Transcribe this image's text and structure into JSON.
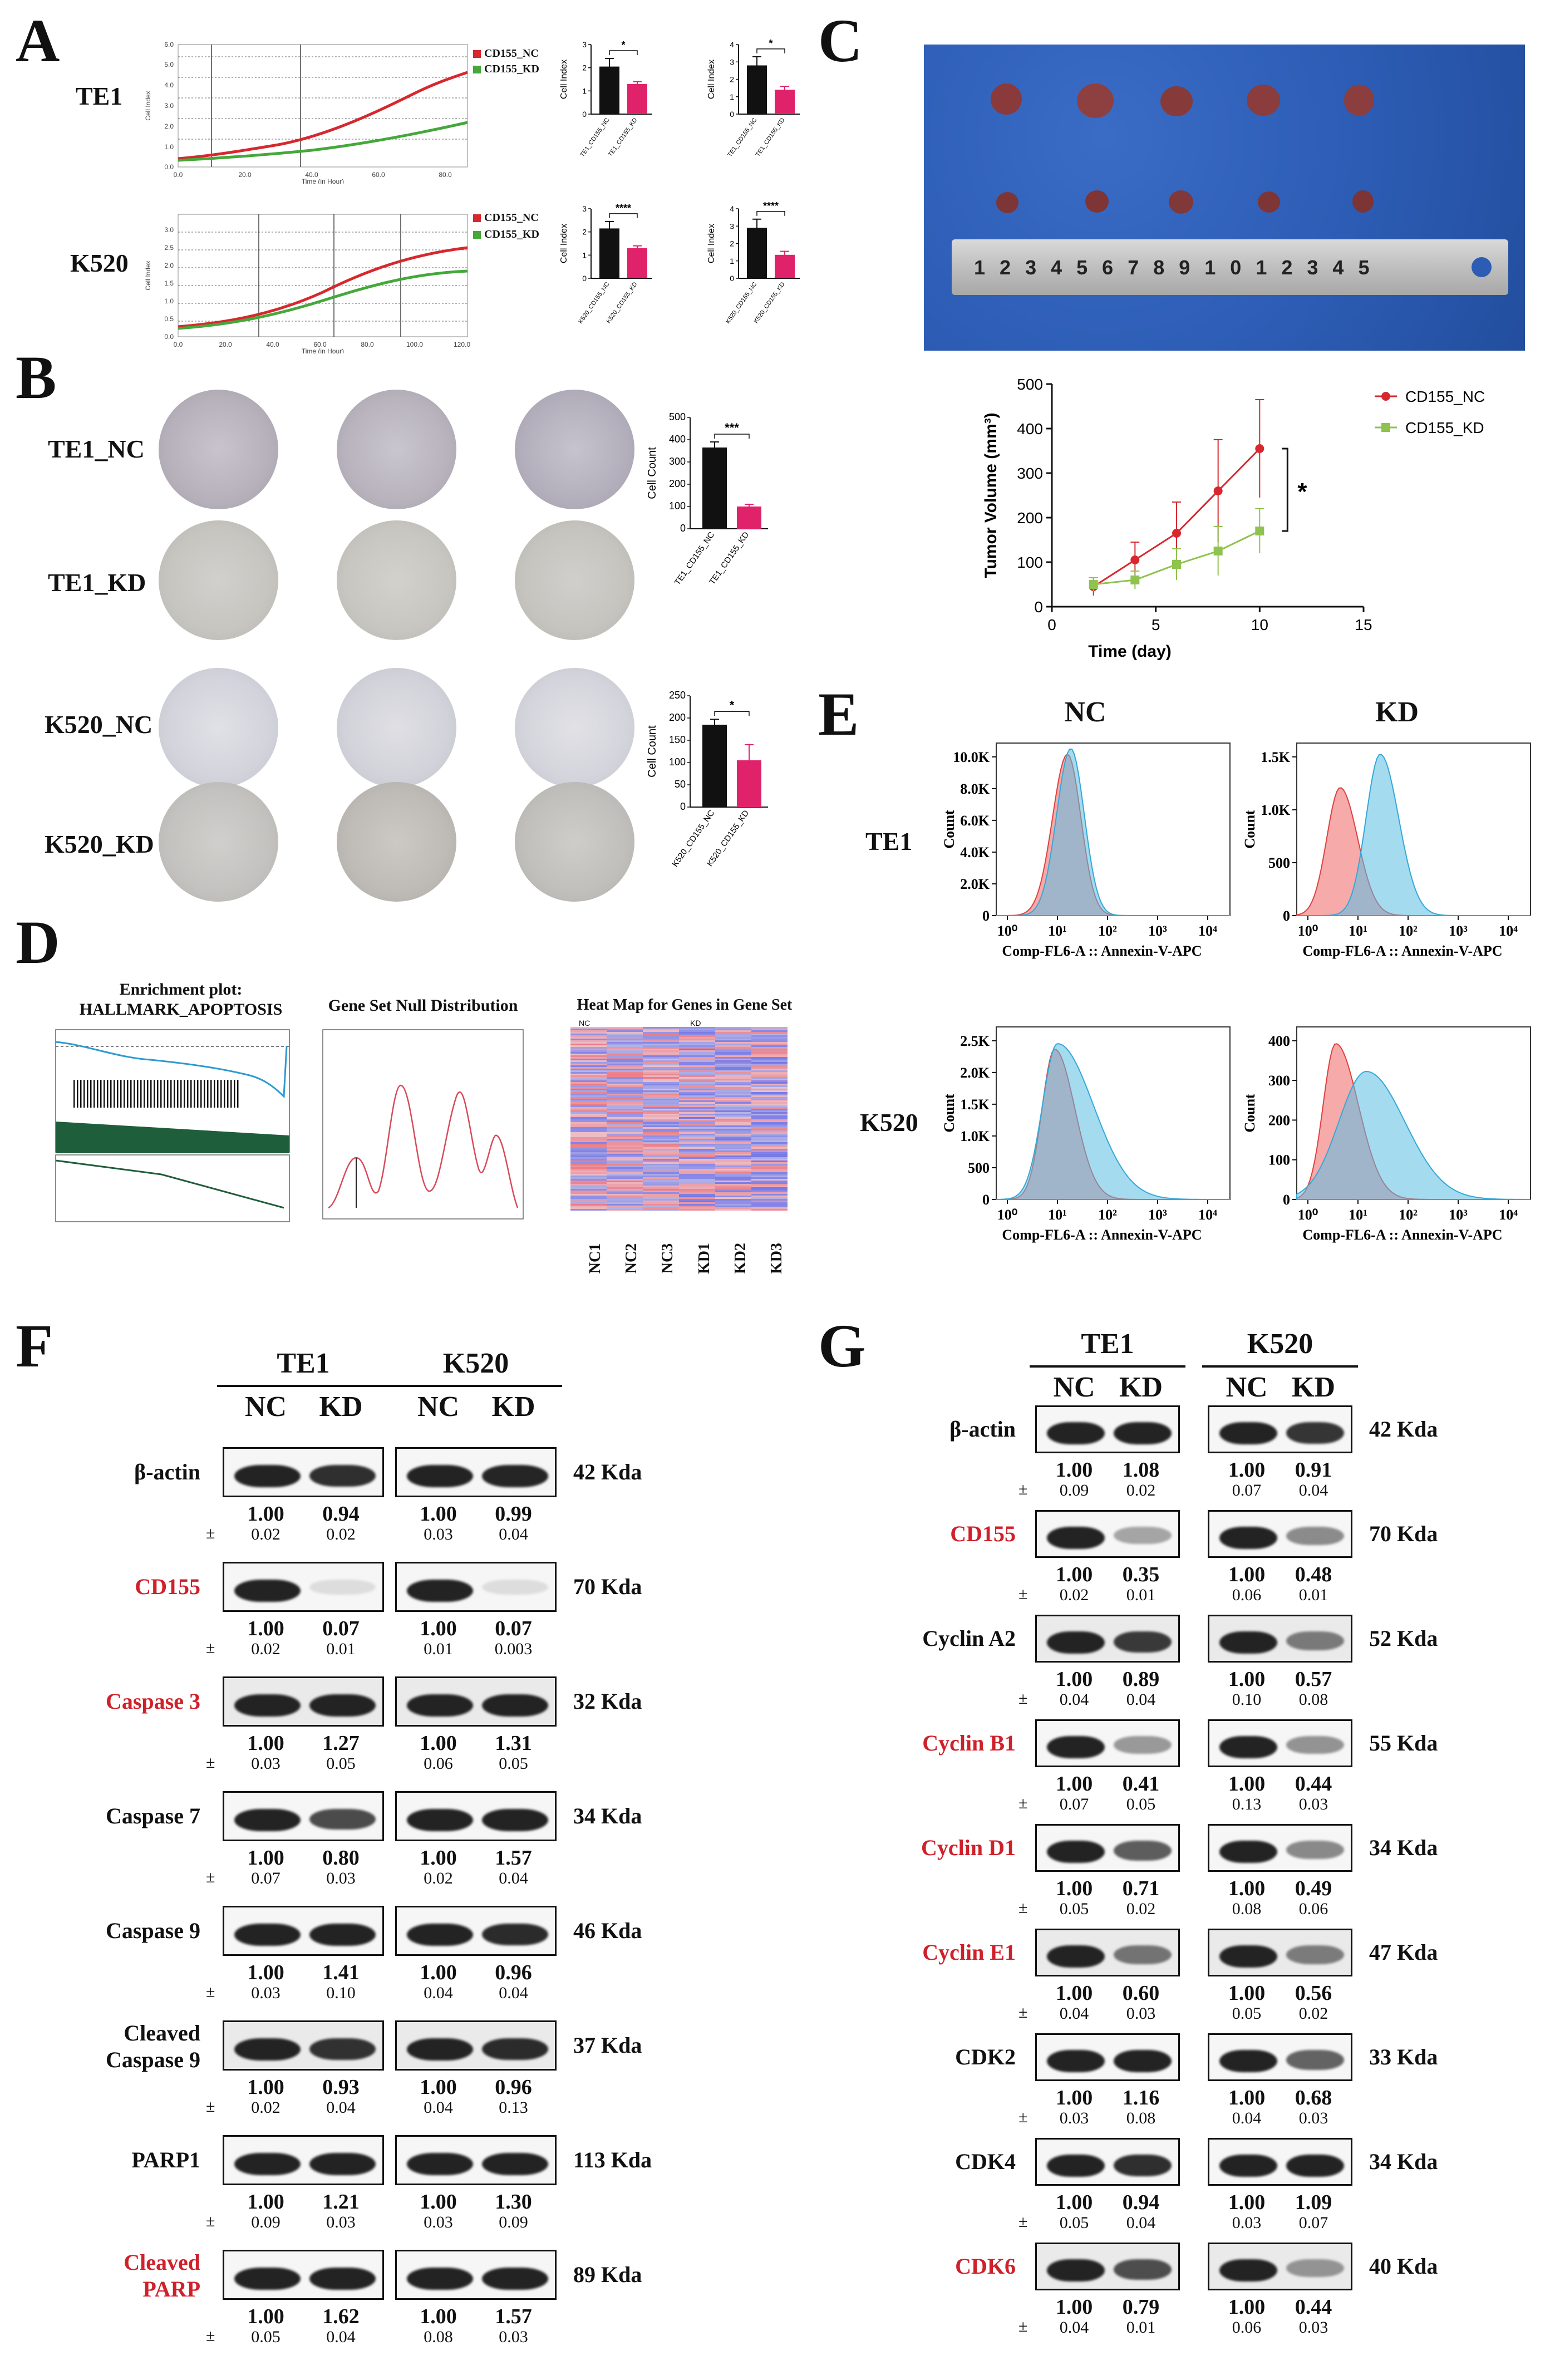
{
  "panels": {
    "A": {
      "letter": "A",
      "rows": [
        {
          "label": "TE1",
          "legend": [
            "CD155_NC",
            "CD155_KD"
          ],
          "xlabel": "Time (in Hour)",
          "ylabel": "Cell Index",
          "xticks": [
            "0.0",
            "20.0",
            "40.0",
            "60.0",
            "80.0"
          ],
          "yticks": [
            "0.0",
            "1.0",
            "2.0",
            "3.0",
            "4.0",
            "5.0",
            "6.0"
          ],
          "bars1": {
            "sig": "*",
            "ylabel": "Cell Index",
            "yticks": [
              "0",
              "1",
              "2",
              "3"
            ],
            "cats": [
              "TE1_CD155_NC",
              "TE1_CD155_KD"
            ],
            "values": [
              2.05,
              1.3
            ],
            "errors": [
              0.35,
              0.1
            ]
          },
          "bars2": {
            "sig": "*",
            "ylabel": "Cell Index",
            "yticks": [
              "0",
              "1",
              "2",
              "3",
              "4"
            ],
            "cats": [
              "TE1_CD155_NC",
              "TE1_CD155_KD"
            ],
            "values": [
              2.8,
              1.4
            ],
            "errors": [
              0.5,
              0.2
            ]
          }
        },
        {
          "label": "K520",
          "legend": [
            "CD155_NC",
            "CD155_KD"
          ],
          "xlabel": "Time (in Hour)",
          "ylabel": "Cell Index",
          "xticks": [
            "0.0",
            "20.0",
            "40.0",
            "60.0",
            "80.0",
            "100.0",
            "120.0"
          ],
          "yticks": [
            "0.0",
            "0.5",
            "1.0",
            "1.5",
            "2.0",
            "2.5",
            "3.0"
          ],
          "bars1": {
            "sig": "****",
            "ylabel": "Cell Index",
            "yticks": [
              "0",
              "1",
              "2",
              "3"
            ],
            "cats": [
              "K520_CD155_NC",
              "K520_CD155_KD"
            ],
            "values": [
              2.15,
              1.3
            ],
            "errors": [
              0.3,
              0.1
            ]
          },
          "bars2": {
            "sig": "****",
            "ylabel": "Cell Index",
            "yticks": [
              "0",
              "1",
              "2",
              "3",
              "4"
            ],
            "cats": [
              "K520_CD155_NC",
              "K520_CD155_KD"
            ],
            "values": [
              2.9,
              1.35
            ],
            "errors": [
              0.5,
              0.2
            ]
          }
        }
      ]
    },
    "B": {
      "letter": "B",
      "rows": [
        "TE1_NC",
        "TE1_KD",
        "K520_NC",
        "K520_KD"
      ],
      "chart1": {
        "sig": "***",
        "ylabel": "Cell Count",
        "yticks": [
          "0",
          "100",
          "200",
          "300",
          "400",
          "500"
        ],
        "cats": [
          "TE1_CD155_NC",
          "TE1_CD155_KD"
        ],
        "values": [
          365,
          100
        ],
        "errors": [
          25,
          10
        ]
      },
      "chart2": {
        "sig": "*",
        "ylabel": "Cell Count",
        "yticks": [
          "0",
          "50",
          "100",
          "150",
          "200",
          "250"
        ],
        "cats": [
          "K520_CD155_NC",
          "K520_CD155_KD"
        ],
        "values": [
          185,
          105
        ],
        "errors": [
          12,
          35
        ]
      }
    },
    "C": {
      "letter": "C",
      "ruler_numbers": [
        "1",
        "2",
        "3",
        "4",
        "5",
        "6",
        "7",
        "8",
        "9",
        "10",
        "1",
        "2",
        "3",
        "4",
        "5"
      ],
      "sig": "*"
    },
    "D": {
      "letter": "D",
      "enrich_title_1": "Enrichment plot:",
      "enrich_title_2": "HALLMARK_APOPTOSIS",
      "null_title": "Gene Set Null Distribution",
      "heat_title": "Heat Map for Genes in Gene Set",
      "heat_groups": [
        "NC",
        "KD"
      ],
      "heat_cols": [
        "NC1",
        "NC2",
        "NC3",
        "KD1",
        "KD2",
        "KD3"
      ]
    },
    "E": {
      "letter": "E",
      "col_headers": [
        "NC",
        "KD"
      ],
      "rows": [
        "TE1",
        "K520"
      ],
      "xlabel": "Comp-FL6-A :: Annexin-V-APC",
      "ylabel": "Count",
      "xticks": [
        "10⁰",
        "10¹",
        "10²",
        "10³",
        "10⁴"
      ],
      "te1_nc_yticks": [
        "0",
        "2.0K",
        "4.0K",
        "6.0K",
        "8.0K",
        "10.0K"
      ],
      "te1_kd_yticks": [
        "0",
        "500",
        "1.0K",
        "1.5K"
      ],
      "k520_nc_yticks": [
        "0",
        "500",
        "1.0K",
        "1.5K",
        "2.0K",
        "2.5K"
      ],
      "k520_kd_yticks": [
        "0",
        "100",
        "200",
        "300",
        "400"
      ]
    },
    "F": {
      "letter": "F",
      "lines": [
        "TE1",
        "K520"
      ],
      "conds": [
        "NC",
        "KD"
      ],
      "proteins": [
        {
          "name": "β-actin",
          "kda": "42 Kda",
          "red": false,
          "q": [
            "1.00",
            "0.94",
            "1.00",
            "0.99"
          ],
          "sd": [
            "0.02",
            "0.02",
            "0.03",
            "0.04"
          ]
        },
        {
          "name": "CD155",
          "kda": "70 Kda",
          "red": true,
          "q": [
            "1.00",
            "0.07",
            "1.00",
            "0.07"
          ],
          "sd": [
            "0.02",
            "0.01",
            "0.01",
            "0.003"
          ]
        },
        {
          "name": "Caspase 3",
          "kda": "32 Kda",
          "red": true,
          "q": [
            "1.00",
            "1.27",
            "1.00",
            "1.31"
          ],
          "sd": [
            "0.03",
            "0.05",
            "0.06",
            "0.05"
          ]
        },
        {
          "name": "Caspase 7",
          "kda": "34 Kda",
          "red": false,
          "q": [
            "1.00",
            "0.80",
            "1.00",
            "1.57"
          ],
          "sd": [
            "0.07",
            "0.03",
            "0.02",
            "0.04"
          ]
        },
        {
          "name": "Caspase 9",
          "kda": "46 Kda",
          "red": false,
          "q": [
            "1.00",
            "1.41",
            "1.00",
            "0.96"
          ],
          "sd": [
            "0.03",
            "0.10",
            "0.04",
            "0.04"
          ]
        },
        {
          "name": "Cleaved",
          "name2": "Caspase 9",
          "kda": "37 Kda",
          "red": false,
          "q": [
            "1.00",
            "0.93",
            "1.00",
            "0.96"
          ],
          "sd": [
            "0.02",
            "0.04",
            "0.04",
            "0.13"
          ]
        },
        {
          "name": "PARP1",
          "kda": "113 Kda",
          "red": false,
          "q": [
            "1.00",
            "1.21",
            "1.00",
            "1.30"
          ],
          "sd": [
            "0.09",
            "0.03",
            "0.03",
            "0.09"
          ]
        },
        {
          "name": "Cleaved",
          "name2": "PARP",
          "kda": "89 Kda",
          "red": true,
          "q": [
            "1.00",
            "1.62",
            "1.00",
            "1.57"
          ],
          "sd": [
            "0.05",
            "0.04",
            "0.08",
            "0.03"
          ]
        }
      ]
    },
    "G": {
      "letter": "G",
      "lines": [
        "TE1",
        "K520"
      ],
      "conds": [
        "NC",
        "KD"
      ],
      "proteins": [
        {
          "name": "β-actin",
          "kda": "42 Kda",
          "red": false,
          "q": [
            "1.00",
            "1.08",
            "1.00",
            "0.91"
          ],
          "sd": [
            "0.09",
            "0.02",
            "0.07",
            "0.04"
          ]
        },
        {
          "name": "CD155",
          "kda": "70 Kda",
          "red": true,
          "q": [
            "1.00",
            "0.35",
            "1.00",
            "0.48"
          ],
          "sd": [
            "0.02",
            "0.01",
            "0.06",
            "0.01"
          ]
        },
        {
          "name": "Cyclin A2",
          "kda": "52 Kda",
          "red": false,
          "q": [
            "1.00",
            "0.89",
            "1.00",
            "0.57"
          ],
          "sd": [
            "0.04",
            "0.04",
            "0.10",
            "0.08"
          ]
        },
        {
          "name": "Cyclin B1",
          "kda": "55 Kda",
          "red": true,
          "q": [
            "1.00",
            "0.41",
            "1.00",
            "0.44"
          ],
          "sd": [
            "0.07",
            "0.05",
            "0.13",
            "0.03"
          ]
        },
        {
          "name": "Cyclin D1",
          "kda": "34 Kda",
          "red": true,
          "q": [
            "1.00",
            "0.71",
            "1.00",
            "0.49"
          ],
          "sd": [
            "0.05",
            "0.02",
            "0.08",
            "0.06"
          ]
        },
        {
          "name": "Cyclin E1",
          "kda": "47 Kda",
          "red": true,
          "q": [
            "1.00",
            "0.60",
            "1.00",
            "0.56"
          ],
          "sd": [
            "0.04",
            "0.03",
            "0.05",
            "0.02"
          ]
        },
        {
          "name": "CDK2",
          "kda": "33 Kda",
          "red": false,
          "q": [
            "1.00",
            "1.16",
            "1.00",
            "0.68"
          ],
          "sd": [
            "0.03",
            "0.08",
            "0.04",
            "0.03"
          ]
        },
        {
          "name": "CDK4",
          "kda": "34 Kda",
          "red": false,
          "q": [
            "1.00",
            "0.94",
            "1.00",
            "1.09"
          ],
          "sd": [
            "0.05",
            "0.04",
            "0.03",
            "0.07"
          ]
        },
        {
          "name": "CDK6",
          "kda": "40 Kda",
          "red": true,
          "q": [
            "1.00",
            "0.79",
            "1.00",
            "0.44"
          ],
          "sd": [
            "0.04",
            "0.01",
            "0.06",
            "0.03"
          ]
        }
      ]
    }
  },
  "chart_data": [
    {
      "type": "line",
      "title": "",
      "xlabel": "Time (day)",
      "ylabel": "Tumor Volume (mm³)",
      "xlim": [
        0,
        15
      ],
      "ylim": [
        0,
        500
      ],
      "xticks": [
        "0",
        "5",
        "10",
        "15"
      ],
      "yticks": [
        "0",
        "100",
        "200",
        "300",
        "400",
        "500"
      ],
      "legend_position": "top-right",
      "x": [
        2,
        4,
        6,
        8,
        10
      ],
      "series": [
        {
          "name": "CD155_NC",
          "values": [
            45,
            105,
            165,
            260,
            355
          ],
          "errors": [
            20,
            40,
            70,
            115,
            110
          ]
        },
        {
          "name": "CD155_KD",
          "values": [
            50,
            60,
            95,
            125,
            170
          ],
          "errors": [
            15,
            20,
            35,
            55,
            50
          ]
        }
      ],
      "annotation": "*"
    }
  ],
  "colors": {
    "nc": "#d6282e",
    "kd": "#44a83a",
    "pink": "#e0226b",
    "wbred": "#d0202a"
  }
}
